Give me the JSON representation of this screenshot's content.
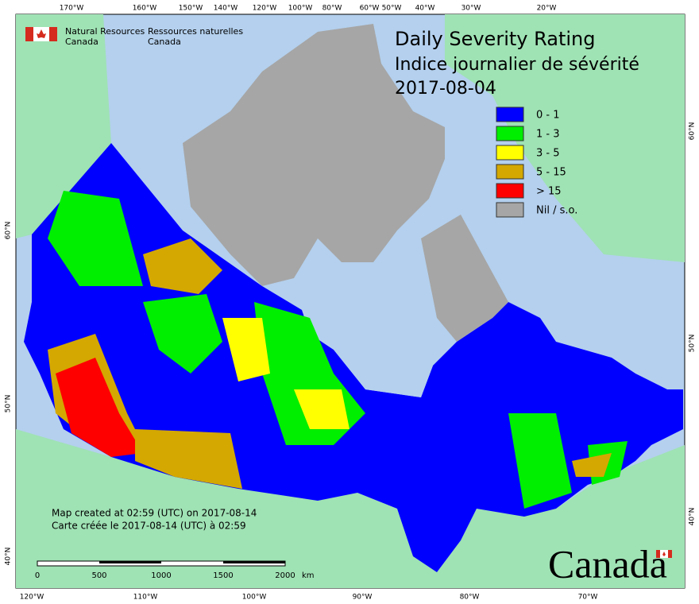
{
  "header": {
    "agency_en": [
      "Natural Resources",
      "Canada"
    ],
    "agency_fr": [
      "Ressources naturelles",
      "Canada"
    ]
  },
  "title": [
    "Daily Severity Rating",
    "Indice journalier de sévérité",
    "2017-08-04"
  ],
  "legend": [
    {
      "label": "0 - 1",
      "color": "#0000ff"
    },
    {
      "label": "1 - 3",
      "color": "#00ee00"
    },
    {
      "label": "3 - 5",
      "color": "#ffff00"
    },
    {
      "label": "5 - 15",
      "color": "#d4a800"
    },
    {
      "label": "> 15",
      "color": "#ff0000"
    },
    {
      "label": "Nil / s.o.",
      "color": "#a6a6a6"
    }
  ],
  "graticule": {
    "top": [
      "170°W",
      "160°W",
      "150°W",
      "140°W",
      "120°W",
      "100°W",
      "80°W",
      "60°W",
      "50°W",
      "40°W",
      "30°W",
      "20°W"
    ],
    "bottom": [
      "120°W",
      "110°W",
      "100°W",
      "90°W",
      "80°W",
      "70°W"
    ],
    "left": [
      "60°N",
      "50°N",
      "40°N"
    ],
    "right": [
      "60°N",
      "50°N",
      "40°N"
    ]
  },
  "notes": [
    "Map created at 02:59 (UTC) on 2017-08-14",
    "Carte créée le 2017-08-14 (UTC) à 02:59"
  ],
  "scale": {
    "labels": [
      "0",
      "500",
      "1000",
      "1500",
      "2000"
    ],
    "unit": "km"
  },
  "wordmark": "Canada"
}
